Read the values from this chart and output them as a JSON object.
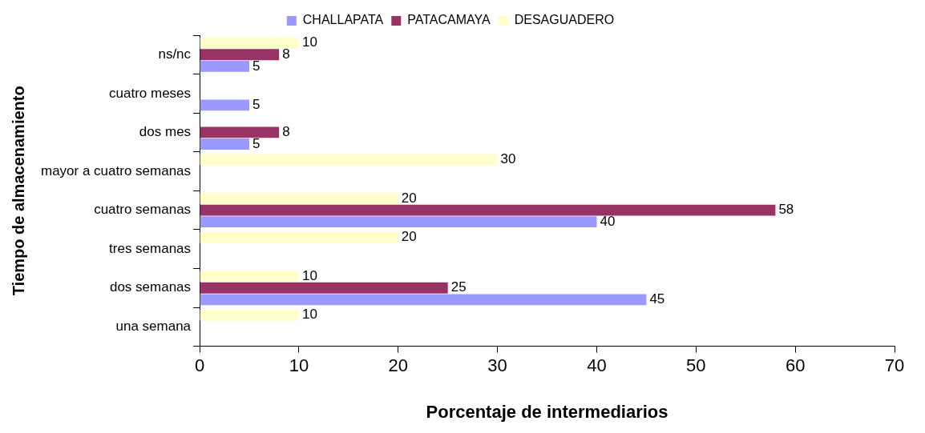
{
  "chart_data": {
    "type": "bar",
    "orientation": "horizontal",
    "xlabel": "Porcentaje de intermediarios",
    "ylabel": "Tiempo de almacenamiento",
    "categories": [
      "ns/nc",
      "cuatro meses",
      "dos mes",
      "mayor a cuatro semanas",
      "cuatro semanas",
      "tres semanas",
      "dos semanas",
      "una semana"
    ],
    "series": [
      {
        "name": "CHALLAPATA",
        "color": "#9999ff",
        "values": [
          5,
          5,
          5,
          null,
          40,
          null,
          45,
          null
        ]
      },
      {
        "name": "PATACAMAYA",
        "color": "#993366",
        "values": [
          8,
          null,
          8,
          null,
          58,
          null,
          25,
          null
        ]
      },
      {
        "name": "DESAGUADERO",
        "color": "#ffffcc",
        "values": [
          10,
          null,
          null,
          30,
          20,
          20,
          10,
          10
        ]
      }
    ],
    "xlim": [
      0,
      70
    ],
    "xticks": [
      0,
      10,
      20,
      30,
      40,
      50,
      60,
      70
    ],
    "data_labels": true,
    "grid": false,
    "legend": "top"
  }
}
